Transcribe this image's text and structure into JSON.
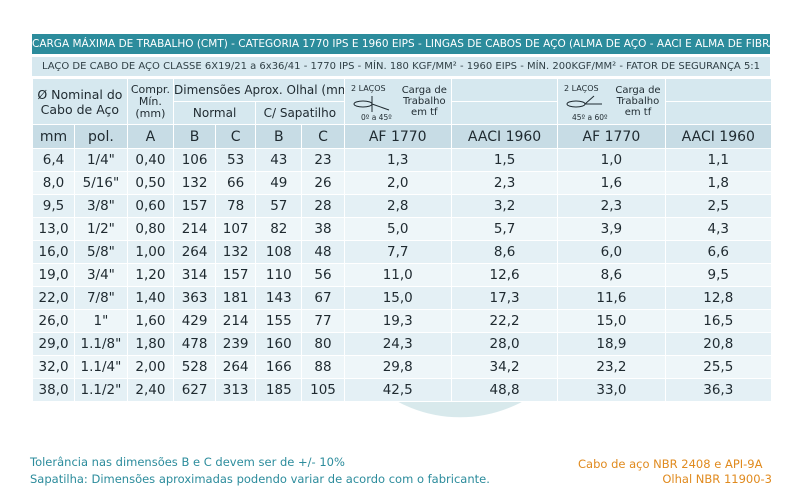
{
  "banner_title": "CARGA MÁXIMA DE TRABALHO (CMT) - CATEGORIA 1770 IPS E 1960 EIPS - LINGAS DE CABOS DE AÇO (ALMA DE AÇO - AACI E ALMA DE FIBRA - AF)",
  "banner_subtitle": "LAÇO DE CABO DE AÇO CLASSE 6X19/21 a 6x36/41 - 1770 IPS - MÍN. 180 KGF/MM² - 1960 EIPS - MÍN. 200KGF/MM² - FATOR DE SEGURANÇA 5:1",
  "header": {
    "nominal": "Ø Nominal do",
    "nominal2": "Cabo de Aço",
    "compr1": "Compr.",
    "compr2": "Mín.",
    "compr3": "(mm)",
    "dims": "Dimensões Aprox. Olhal (mm)",
    "normal": "Normal",
    "sapatilho": "C/ Sapatilho",
    "group1_lacos": "2 LAÇOS",
    "group1_angle": "0º a 45º",
    "group1_load1": "Carga de",
    "group1_load2": "Trabalho",
    "group1_load3": "em tf",
    "group2_lacos": "2 LAÇOS",
    "group2_angle": "45º a 60º",
    "group2_load1": "Carga de",
    "group2_load2": "Trabalho",
    "group2_load3": "em tf"
  },
  "units": [
    "mm",
    "pol.",
    "A",
    "B",
    "C",
    "B",
    "C",
    "AF 1770",
    "AACI 1960",
    "AF 1770",
    "AACI 1960"
  ],
  "rows": [
    [
      "6,4",
      "1/4\"",
      "0,40",
      "106",
      "53",
      "43",
      "23",
      "1,3",
      "1,5",
      "1,0",
      "1,1"
    ],
    [
      "8,0",
      "5/16\"",
      "0,50",
      "132",
      "66",
      "49",
      "26",
      "2,0",
      "2,3",
      "1,6",
      "1,8"
    ],
    [
      "9,5",
      "3/8\"",
      "0,60",
      "157",
      "78",
      "57",
      "28",
      "2,8",
      "3,2",
      "2,3",
      "2,5"
    ],
    [
      "13,0",
      "1/2\"",
      "0,80",
      "214",
      "107",
      "82",
      "38",
      "5,0",
      "5,7",
      "3,9",
      "4,3"
    ],
    [
      "16,0",
      "5/8\"",
      "1,00",
      "264",
      "132",
      "108",
      "48",
      "7,7",
      "8,6",
      "6,0",
      "6,6"
    ],
    [
      "19,0",
      "3/4\"",
      "1,20",
      "314",
      "157",
      "110",
      "56",
      "11,0",
      "12,6",
      "8,6",
      "9,5"
    ],
    [
      "22,0",
      "7/8\"",
      "1,40",
      "363",
      "181",
      "143",
      "67",
      "15,0",
      "17,3",
      "11,6",
      "12,8"
    ],
    [
      "26,0",
      "1\"",
      "1,60",
      "429",
      "214",
      "155",
      "77",
      "19,3",
      "22,2",
      "15,0",
      "16,5"
    ],
    [
      "29,0",
      "1.1/8\"",
      "1,80",
      "478",
      "239",
      "160",
      "80",
      "24,3",
      "28,0",
      "18,9",
      "20,8"
    ],
    [
      "32,0",
      "1.1/4\"",
      "2,00",
      "528",
      "264",
      "166",
      "88",
      "29,8",
      "34,2",
      "23,2",
      "25,5"
    ],
    [
      "38,0",
      "1.1/2\"",
      "2,40",
      "627",
      "313",
      "185",
      "105",
      "42,5",
      "48,8",
      "33,0",
      "36,3"
    ]
  ],
  "footer": {
    "tolerance": "Tolerância nas dimensões B e C devem ser de +/- 10%",
    "sapatilha": "Sapatilha: Dimensões aproximadas podendo variar de acordo com o fabricante.",
    "norm1": "Cabo de aço NBR 2408 e API-9A",
    "norm2": "Olhal NBR 11900-3"
  },
  "colors": {
    "banner": "#2c8c9c",
    "banner_light": "#d6e8ef",
    "footer_left": "#2c8c9c",
    "footer_right": "#e08a1e"
  }
}
